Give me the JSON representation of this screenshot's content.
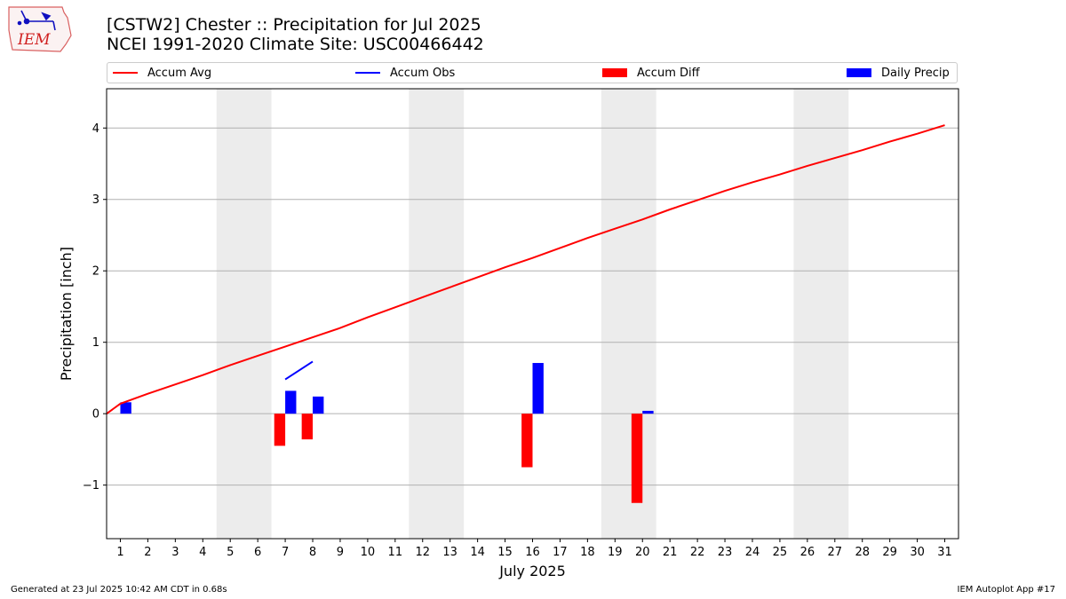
{
  "logo": {
    "text": "IEM"
  },
  "title_line1": "[CSTW2] Chester :: Precipitation for Jul 2025",
  "title_line2": "NCEI 1991-2020 Climate Site: USC00466442",
  "footer_left": "Generated at 23 Jul 2025 10:42 AM CDT in 0.68s",
  "footer_right": "IEM Autoplot App #17",
  "legend": [
    {
      "label": "Accum Avg",
      "kind": "line",
      "color": "#ff0000"
    },
    {
      "label": "Accum Obs",
      "kind": "line",
      "color": "#0000ff"
    },
    {
      "label": "Accum Diff",
      "kind": "rect",
      "color": "#ff0000"
    },
    {
      "label": "Daily Precip",
      "kind": "rect",
      "color": "#0000ff"
    }
  ],
  "chart_data": {
    "type": "bar",
    "xlabel": "July 2025",
    "ylabel": "Precipitation [inch]",
    "xlim": [
      0.5,
      31.5
    ],
    "ylim": [
      -1.75,
      4.55
    ],
    "yticks": [
      -1,
      0,
      1,
      2,
      3,
      4
    ],
    "ytick_labels": [
      "−1",
      "0",
      "1",
      "2",
      "3",
      "4"
    ],
    "xticks": [
      1,
      2,
      3,
      4,
      5,
      6,
      7,
      8,
      9,
      10,
      11,
      12,
      13,
      14,
      15,
      16,
      17,
      18,
      19,
      20,
      21,
      22,
      23,
      24,
      25,
      26,
      27,
      28,
      29,
      30,
      31
    ],
    "grid": "horizontal",
    "weekend_shading": [
      [
        4.5,
        6.5
      ],
      [
        11.5,
        13.5
      ],
      [
        18.5,
        20.5
      ],
      [
        25.5,
        27.5
      ]
    ],
    "colors": {
      "avg": "#ff0000",
      "obs": "#0000ff",
      "diff": "#ff0000",
      "precip": "#0000ff",
      "shade": "#ececec",
      "grid": "#b0b0b0"
    },
    "series": [
      {
        "name": "Accum Avg",
        "type": "line",
        "x": [
          1,
          2,
          3,
          4,
          5,
          6,
          7,
          8,
          9,
          10,
          11,
          12,
          13,
          14,
          15,
          16,
          17,
          18,
          19,
          20,
          21,
          22,
          23,
          24,
          25,
          26,
          27,
          28,
          29,
          30,
          31
        ],
        "values": [
          0.14,
          0.28,
          0.41,
          0.54,
          0.68,
          0.81,
          0.94,
          1.07,
          1.2,
          1.35,
          1.49,
          1.63,
          1.77,
          1.91,
          2.05,
          2.18,
          2.32,
          2.46,
          2.59,
          2.72,
          2.86,
          2.99,
          3.12,
          3.24,
          3.35,
          3.47,
          3.58,
          3.69,
          3.81,
          3.92,
          4.04
        ]
      },
      {
        "name": "Accum Obs",
        "type": "line",
        "x": [
          7,
          8
        ],
        "values": [
          0.48,
          0.73
        ]
      },
      {
        "name": "Accum Diff",
        "type": "bar",
        "x": [
          7,
          8,
          16,
          20
        ],
        "values": [
          -0.45,
          -0.36,
          -0.75,
          -1.25
        ]
      },
      {
        "name": "Daily Precip",
        "type": "bar",
        "x": [
          1,
          7,
          8,
          16,
          20
        ],
        "values": [
          0.16,
          0.32,
          0.24,
          0.71,
          0.04
        ]
      }
    ]
  }
}
